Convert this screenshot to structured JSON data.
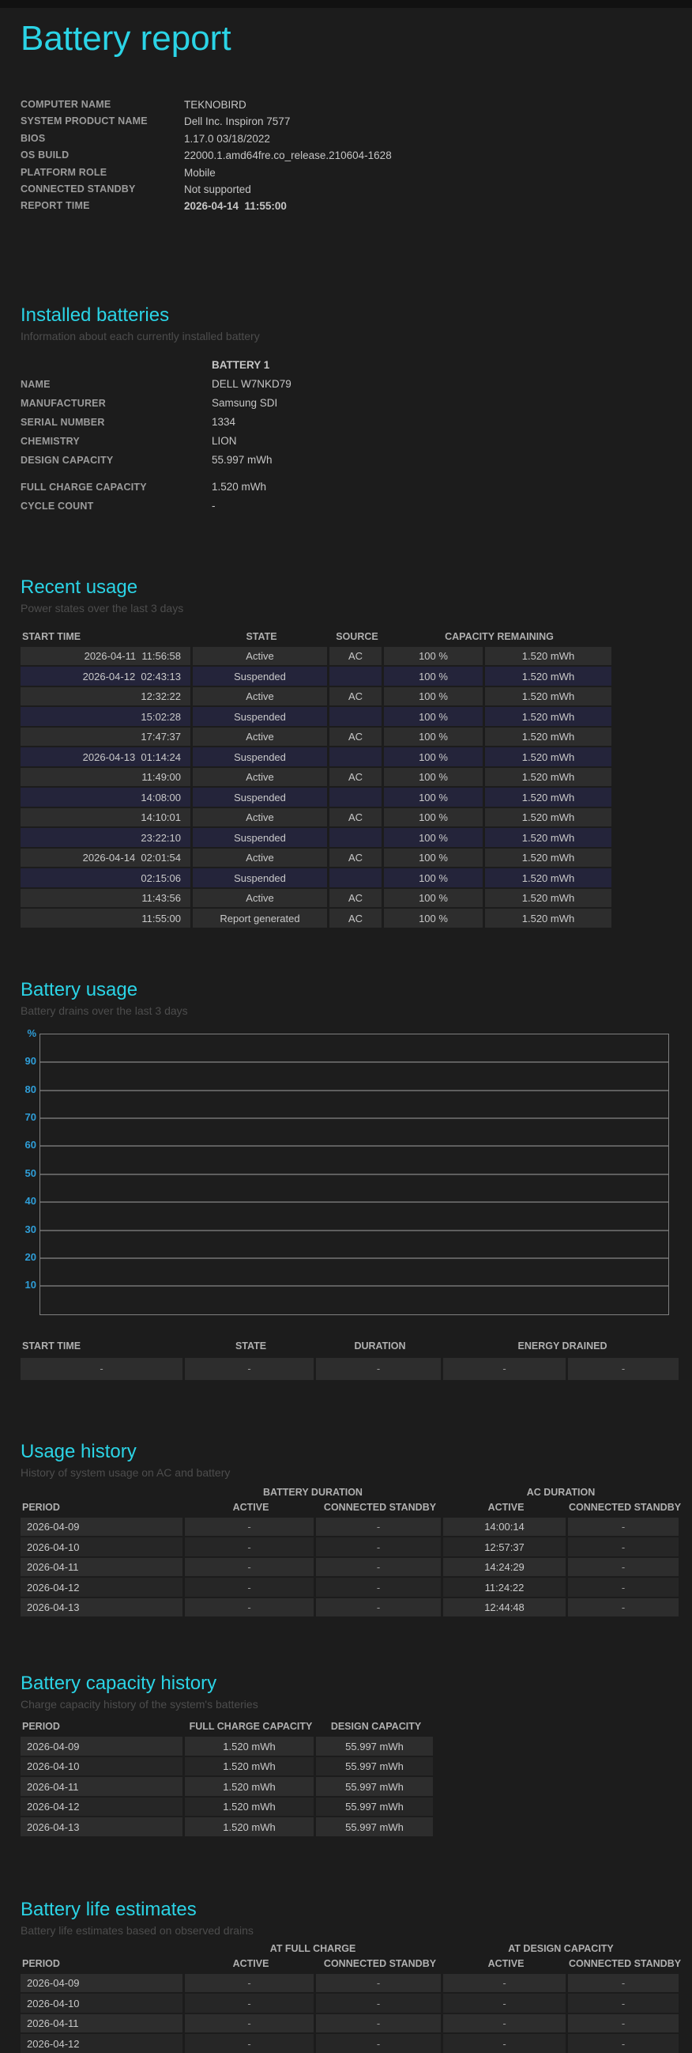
{
  "title": "Battery report",
  "colors": {
    "accent": "#2bd4e6",
    "axis_label": "#2f9ed8",
    "suspended_row": "#24243a",
    "row": "#2d2d2d"
  },
  "system_info": [
    {
      "label": "COMPUTER NAME",
      "value": "TEKNOBIRD"
    },
    {
      "label": "SYSTEM PRODUCT NAME",
      "value": "Dell Inc. Inspiron 7577"
    },
    {
      "label": "BIOS",
      "value": "1.17.0 03/18/2022"
    },
    {
      "label": "OS BUILD",
      "value": "22000.1.amd64fre.co_release.210604-1628"
    },
    {
      "label": "PLATFORM ROLE",
      "value": "Mobile"
    },
    {
      "label": "CONNECTED STANDBY",
      "value": "Not supported"
    },
    {
      "label": "REPORT TIME",
      "value": "2026-04-14  11:55:00",
      "bold": true
    }
  ],
  "installed_batteries": {
    "heading": "Installed batteries",
    "subtitle": "Information about each currently installed battery",
    "column_header": "BATTERY 1",
    "rows": [
      {
        "label": "NAME",
        "value": "DELL W7NKD79"
      },
      {
        "label": "MANUFACTURER",
        "value": "Samsung SDI"
      },
      {
        "label": "SERIAL NUMBER",
        "value": "1334"
      },
      {
        "label": "CHEMISTRY",
        "value": "LION"
      },
      {
        "label": "DESIGN CAPACITY",
        "value": "55.997 mWh"
      },
      {
        "label": "FULL CHARGE CAPACITY",
        "value": "1.520 mWh",
        "gap_before": true
      },
      {
        "label": "CYCLE COUNT",
        "value": "-"
      }
    ]
  },
  "recent_usage": {
    "heading": "Recent usage",
    "subtitle": "Power states over the last 3 days",
    "headers": {
      "start_time": "START TIME",
      "state": "STATE",
      "source": "SOURCE",
      "capacity": "CAPACITY REMAINING"
    },
    "rows": [
      {
        "start": "2026-04-11  11:56:58",
        "state": "Active",
        "source": "AC",
        "percent": "100 %",
        "capacity": "1.520 mWh"
      },
      {
        "start": "2026-04-12  02:43:13",
        "state": "Suspended",
        "source": "",
        "percent": "100 %",
        "capacity": "1.520 mWh"
      },
      {
        "start": "12:32:22",
        "state": "Active",
        "source": "AC",
        "percent": "100 %",
        "capacity": "1.520 mWh"
      },
      {
        "start": "15:02:28",
        "state": "Suspended",
        "source": "",
        "percent": "100 %",
        "capacity": "1.520 mWh"
      },
      {
        "start": "17:47:37",
        "state": "Active",
        "source": "AC",
        "percent": "100 %",
        "capacity": "1.520 mWh"
      },
      {
        "start": "2026-04-13  01:14:24",
        "state": "Suspended",
        "source": "",
        "percent": "100 %",
        "capacity": "1.520 mWh"
      },
      {
        "start": "11:49:00",
        "state": "Active",
        "source": "AC",
        "percent": "100 %",
        "capacity": "1.520 mWh"
      },
      {
        "start": "14:08:00",
        "state": "Suspended",
        "source": "",
        "percent": "100 %",
        "capacity": "1.520 mWh"
      },
      {
        "start": "14:10:01",
        "state": "Active",
        "source": "AC",
        "percent": "100 %",
        "capacity": "1.520 mWh"
      },
      {
        "start": "23:22:10",
        "state": "Suspended",
        "source": "",
        "percent": "100 %",
        "capacity": "1.520 mWh"
      },
      {
        "start": "2026-04-14  02:01:54",
        "state": "Active",
        "source": "AC",
        "percent": "100 %",
        "capacity": "1.520 mWh"
      },
      {
        "start": "02:15:06",
        "state": "Suspended",
        "source": "",
        "percent": "100 %",
        "capacity": "1.520 mWh"
      },
      {
        "start": "11:43:56",
        "state": "Active",
        "source": "AC",
        "percent": "100 %",
        "capacity": "1.520 mWh"
      },
      {
        "start": "11:55:00",
        "state": "Report generated",
        "source": "AC",
        "percent": "100 %",
        "capacity": "1.520 mWh"
      }
    ]
  },
  "battery_usage": {
    "heading": "Battery usage",
    "subtitle": "Battery drains over the last 3 days",
    "chart_data": {
      "type": "line",
      "title": "Battery usage",
      "ylabel": "%",
      "ylim": [
        0,
        100
      ],
      "axis_labels": [
        "%",
        "90",
        "80",
        "70",
        "60",
        "50",
        "40",
        "30",
        "20",
        "10"
      ],
      "grid": true,
      "series": []
    },
    "table": {
      "headers": [
        "START TIME",
        "STATE",
        "DURATION",
        "ENERGY DRAINED"
      ],
      "rows": [
        [
          "-",
          "-",
          "-",
          "-",
          "-"
        ]
      ]
    }
  },
  "usage_history": {
    "heading": "Usage history",
    "subtitle": "History of system usage on AC and battery",
    "group_headers": [
      "BATTERY DURATION",
      "AC DURATION"
    ],
    "headers": [
      "PERIOD",
      "ACTIVE",
      "CONNECTED STANDBY",
      "ACTIVE",
      "CONNECTED STANDBY"
    ],
    "rows": [
      [
        "2026-04-09",
        "-",
        "-",
        "14:00:14",
        "-"
      ],
      [
        "2026-04-10",
        "-",
        "-",
        "12:57:37",
        "-"
      ],
      [
        "2026-04-11",
        "-",
        "-",
        "14:24:29",
        "-"
      ],
      [
        "2026-04-12",
        "-",
        "-",
        "11:24:22",
        "-"
      ],
      [
        "2026-04-13",
        "-",
        "-",
        "12:44:48",
        "-"
      ]
    ]
  },
  "capacity_history": {
    "heading": "Battery capacity history",
    "subtitle": "Charge capacity history of the system's batteries",
    "headers": [
      "PERIOD",
      "FULL CHARGE CAPACITY",
      "DESIGN CAPACITY"
    ],
    "rows": [
      [
        "2026-04-09",
        "1.520 mWh",
        "55.997 mWh"
      ],
      [
        "2026-04-10",
        "1.520 mWh",
        "55.997 mWh"
      ],
      [
        "2026-04-11",
        "1.520 mWh",
        "55.997 mWh"
      ],
      [
        "2026-04-12",
        "1.520 mWh",
        "55.997 mWh"
      ],
      [
        "2026-04-13",
        "1.520 mWh",
        "55.997 mWh"
      ]
    ]
  },
  "life_estimates": {
    "heading": "Battery life estimates",
    "subtitle": "Battery life estimates based on observed drains",
    "group_headers": [
      "AT FULL CHARGE",
      "AT DESIGN CAPACITY"
    ],
    "headers": [
      "PERIOD",
      "ACTIVE",
      "CONNECTED STANDBY",
      "ACTIVE",
      "CONNECTED STANDBY"
    ],
    "rows": [
      [
        "2026-04-09",
        "-",
        "-",
        "-",
        "-"
      ],
      [
        "2026-04-10",
        "-",
        "-",
        "-",
        "-"
      ],
      [
        "2026-04-11",
        "-",
        "-",
        "-",
        "-"
      ],
      [
        "2026-04-12",
        "-",
        "-",
        "-",
        "-"
      ]
    ]
  }
}
